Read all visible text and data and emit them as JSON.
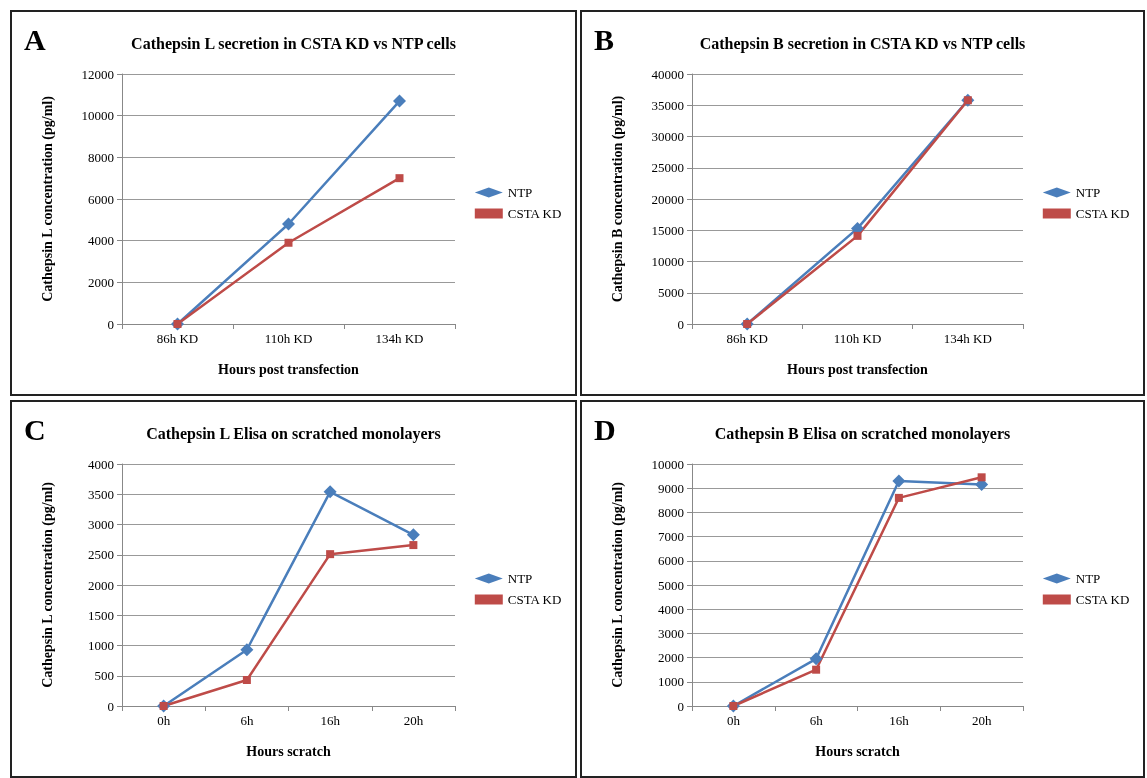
{
  "chart_data": [
    {
      "type": "line",
      "annotations": [
        "A"
      ],
      "title": "Cathepsin L secretion in CSTA KD vs NTP cells",
      "xlabel": "Hours post transfection",
      "ylabel": "Cathepsin L concentration (pg/ml)",
      "categories": [
        "86h KD",
        "110h KD",
        "134h KD"
      ],
      "series": [
        {
          "name": "NTP",
          "color": "#4a7ebb",
          "marker": "diamond",
          "values": [
            0,
            4800,
            10700
          ]
        },
        {
          "name": "CSTA KD",
          "color": "#be4b48",
          "marker": "square",
          "values": [
            0,
            3900,
            7000
          ]
        }
      ],
      "ylim": [
        0,
        12000
      ],
      "yticks": [
        0,
        2000,
        4000,
        6000,
        8000,
        10000,
        12000
      ],
      "grid": "y",
      "legend": "right"
    },
    {
      "type": "line",
      "annotations": [
        "B"
      ],
      "title": "Cathepsin B secretion in CSTA KD vs NTP cells",
      "xlabel": "Hours post transfection",
      "ylabel": "Cathepsin B concentration (pg/ml)",
      "categories": [
        "86h KD",
        "110h KD",
        "134h KD"
      ],
      "series": [
        {
          "name": "NTP",
          "color": "#4a7ebb",
          "marker": "diamond",
          "values": [
            0,
            15300,
            35800
          ]
        },
        {
          "name": "CSTA KD",
          "color": "#be4b48",
          "marker": "square",
          "values": [
            0,
            14100,
            35800
          ]
        }
      ],
      "ylim": [
        0,
        40000
      ],
      "yticks": [
        0,
        5000,
        10000,
        15000,
        20000,
        25000,
        30000,
        35000,
        40000
      ],
      "grid": "y",
      "legend": "right"
    },
    {
      "type": "line",
      "annotations": [
        "C"
      ],
      "title": "Cathepsin L Elisa on scratched monolayers",
      "xlabel": "Hours scratch",
      "ylabel": "Cathepsin L concentration (pg/ml)",
      "categories": [
        "0h",
        "6h",
        "16h",
        "20h"
      ],
      "series": [
        {
          "name": "NTP",
          "color": "#4a7ebb",
          "marker": "diamond",
          "values": [
            0,
            930,
            3540,
            2830
          ]
        },
        {
          "name": "CSTA KD",
          "color": "#be4b48",
          "marker": "square",
          "values": [
            0,
            430,
            2510,
            2660
          ]
        }
      ],
      "ylim": [
        0,
        4000
      ],
      "yticks": [
        0,
        500,
        1000,
        1500,
        2000,
        2500,
        3000,
        3500,
        4000
      ],
      "grid": "y",
      "legend": "right"
    },
    {
      "type": "line",
      "annotations": [
        "D"
      ],
      "title": "Cathepsin B Elisa on scratched monolayers",
      "xlabel": "Hours scratch",
      "ylabel": "Cathepsin L concentration (pg/ml)",
      "categories": [
        "0h",
        "6h",
        "16h",
        "20h"
      ],
      "series": [
        {
          "name": "NTP",
          "color": "#4a7ebb",
          "marker": "diamond",
          "values": [
            0,
            1950,
            9300,
            9150
          ]
        },
        {
          "name": "CSTA KD",
          "color": "#be4b48",
          "marker": "square",
          "values": [
            0,
            1500,
            8600,
            9450
          ]
        }
      ],
      "ylim": [
        0,
        10000
      ],
      "yticks": [
        0,
        1000,
        2000,
        3000,
        4000,
        5000,
        6000,
        7000,
        8000,
        9000,
        10000
      ],
      "grid": "y",
      "legend": "right"
    }
  ]
}
